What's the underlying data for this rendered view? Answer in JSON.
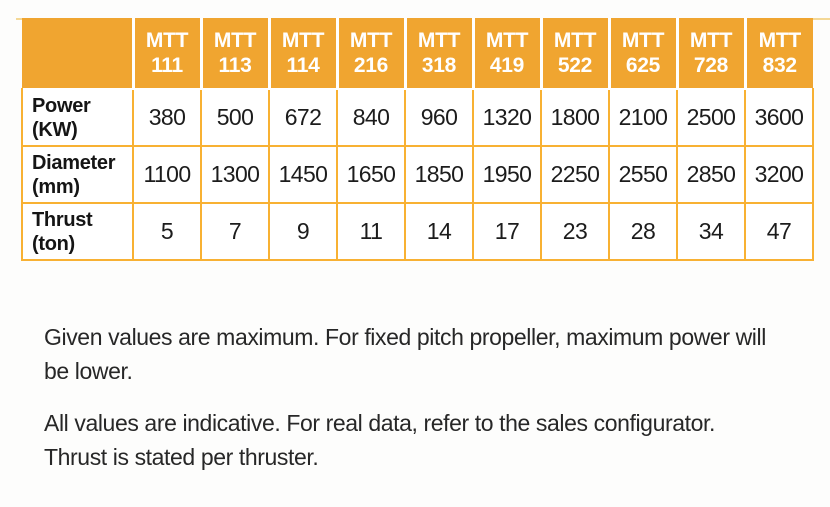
{
  "colors": {
    "header_orange": "#f0a530",
    "body_border_orange": "#f8b133",
    "header_text": "#ffffff",
    "body_text": "#1c1c1c"
  },
  "table": {
    "corner_label": "",
    "columns": [
      {
        "line1": "MTT",
        "line2": "111"
      },
      {
        "line1": "MTT",
        "line2": "113"
      },
      {
        "line1": "MTT",
        "line2": "114"
      },
      {
        "line1": "MTT",
        "line2": "216"
      },
      {
        "line1": "MTT",
        "line2": "318"
      },
      {
        "line1": "MTT",
        "line2": "419"
      },
      {
        "line1": "MTT",
        "line2": "522"
      },
      {
        "line1": "MTT",
        "line2": "625"
      },
      {
        "line1": "MTT",
        "line2": "728"
      },
      {
        "line1": "MTT",
        "line2": "832"
      }
    ],
    "rows": [
      {
        "label_line1": "Power",
        "label_line2": "(KW)",
        "values": [
          "380",
          "500",
          "672",
          "840",
          "960",
          "1320",
          "1800",
          "2100",
          "2500",
          "3600"
        ]
      },
      {
        "label_line1": "Diameter",
        "label_line2": "(mm)",
        "values": [
          "1100",
          "1300",
          "1450",
          "1650",
          "1850",
          "1950",
          "2250",
          "2550",
          "2850",
          "3200"
        ]
      },
      {
        "label_line1": "Thrust",
        "label_line2": "(ton)",
        "values": [
          "5",
          "7",
          "9",
          "11",
          "14",
          "17",
          "23",
          "28",
          "34",
          "47"
        ]
      }
    ]
  },
  "notes": {
    "note1_line1": "Given values are maximum. For fixed pitch propeller, maximum power will",
    "note1_line2": "be lower.",
    "note2_line1": "All values are indicative. For real data, refer to the sales configurator.",
    "note2_line2": "Thrust is stated per thruster."
  }
}
